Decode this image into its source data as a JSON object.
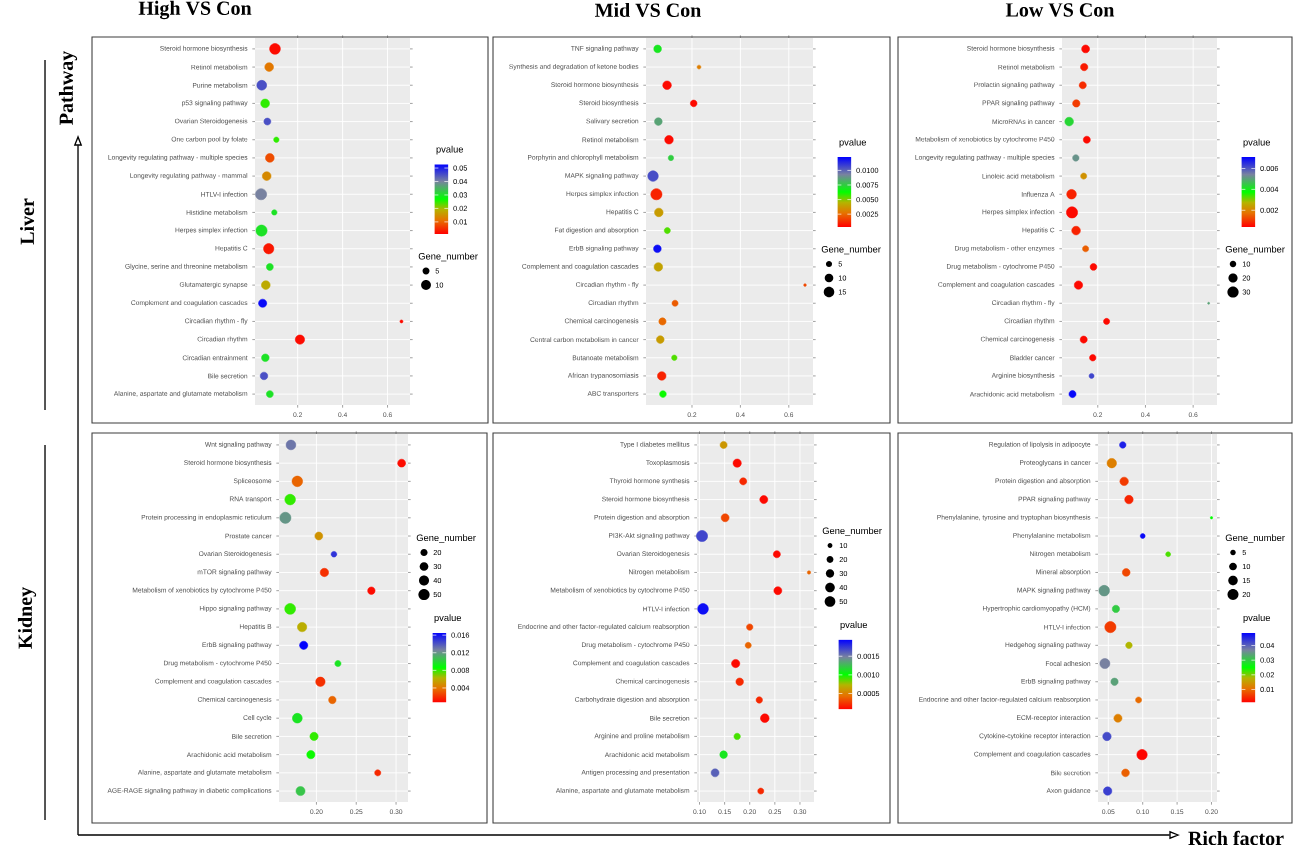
{
  "chart_data": [
    {
      "type": "bubble",
      "orientation": "horizontal",
      "title": "High VS Con",
      "ylabel": "Pathway",
      "annotations": [
        "Liver"
      ],
      "grid": true,
      "legend_title": "Gene_number",
      "clabel": "pvalue",
      "categories": [
        "Steroid hormone biosynthesis",
        "Retinol metabolism",
        "Purine metabolism",
        "p53 signaling pathway",
        "Ovarian Steroidogenesis",
        "One carbon pool by folate",
        "Longevity regulating pathway - multiple species",
        "Longevity regulating pathway - mammal",
        "HTLV-I infection",
        "Histidine metabolism",
        "Herpes simplex infection",
        "Hepatitis C",
        "Glycine, serine and threonine metabolism",
        "Glutamatergic synapse",
        "Complement and coagulation cascades",
        "Circadian rhythm - fly",
        "Circadian rhythm",
        "Circadian entrainment",
        "Bile secretion",
        "Alanine, aspartate and glutamate metabolism"
      ],
      "values": [
        0.099,
        0.073,
        0.04,
        0.055,
        0.065,
        0.105,
        0.076,
        0.062,
        0.037,
        0.096,
        0.039,
        0.071,
        0.076,
        0.058,
        0.044,
        0.662,
        0.21,
        0.056,
        0.05,
        0.076
      ],
      "sizes": [
        12,
        8,
        10,
        8,
        5,
        3,
        8,
        8,
        13,
        3,
        13,
        11,
        5,
        8,
        7,
        1,
        9,
        6,
        6,
        5
      ],
      "cvalues": [
        0.002,
        0.012,
        0.045,
        0.025,
        0.045,
        0.025,
        0.008,
        0.014,
        0.04,
        0.03,
        0.03,
        0.003,
        0.03,
        0.018,
        0.052,
        0.002,
        0.002,
        0.03,
        0.045,
        0.03
      ],
      "size_legend": [
        5,
        10
      ],
      "clim": [
        0.001,
        0.053
      ],
      "cticks": [
        0.01,
        0.02,
        0.03,
        0.04,
        0.05
      ],
      "xlim": [
        0.01,
        0.7
      ],
      "xticks": [
        0.2,
        0.4,
        0.6
      ]
    },
    {
      "type": "bubble",
      "orientation": "horizontal",
      "title": "Mid VS Con",
      "grid": true,
      "legend_title": "Gene_number",
      "clabel": "pvalue",
      "categories": [
        "TNF signaling pathway",
        "Synthesis and degradation of ketone bodies",
        "Steroid hormone biosynthesis",
        "Steroid biosynthesis",
        "Salivary secretion",
        "Retinol metabolism",
        "Porphyrin and chlorophyll metabolism",
        "MAPK signaling pathway",
        "Herpes simplex infection",
        "Hepatitis C",
        "Fat digestion and absorption",
        "ErbB signaling pathway",
        "Complement and coagulation cascades",
        "Circadian rhythm - fly",
        "Circadian rhythm",
        "Chemical carcinogenesis",
        "Central carbon metabolism in cancer",
        "Butanoate metabolism",
        "African trypanosomiasis",
        "ABC transporters"
      ],
      "values": [
        0.058,
        0.229,
        0.097,
        0.207,
        0.061,
        0.105,
        0.113,
        0.039,
        0.053,
        0.063,
        0.098,
        0.057,
        0.061,
        0.667,
        0.13,
        0.078,
        0.069,
        0.127,
        0.075,
        0.08
      ],
      "sizes": [
        8,
        2,
        10,
        6,
        8,
        10,
        4,
        15,
        17,
        10,
        5,
        8,
        10,
        1,
        5,
        7,
        8,
        4,
        10,
        6
      ],
      "cvalues": [
        0.0069,
        0.003,
        0.0005,
        0.0005,
        0.0085,
        0.0005,
        0.0075,
        0.0105,
        0.001,
        0.0038,
        0.0055,
        0.012,
        0.004,
        0.0018,
        0.0022,
        0.0025,
        0.0038,
        0.0055,
        0.001,
        0.0062
      ],
      "size_legend": [
        5,
        10,
        15
      ],
      "clim": [
        0.0003,
        0.0123
      ],
      "cticks": [
        0.0025,
        {
          "value": 0.005,
          "label": "0.0050"
        },
        {
          "value": 0.0075,
          "label": "0.0075"
        },
        {
          "value": 0.01,
          "label": "0.0100"
        }
      ],
      "xlim": [
        0.01,
        0.7
      ],
      "xticks": [
        0.2,
        0.4,
        0.6
      ]
    },
    {
      "type": "bubble",
      "orientation": "horizontal",
      "title": "Low VS Con",
      "grid": true,
      "legend_title": "Gene_number",
      "clabel": "pvalue",
      "categories": [
        "Steroid hormone biosynthesis",
        "Retinol metabolism",
        "Prolactin signaling pathway",
        "PPAR signaling pathway",
        "MicroRNAs in cancer",
        "Metabolism of xenobiotics by cytochrome P450",
        "Longevity regulating pathway - multiple species",
        "Linoleic acid metabolism",
        "Influenza A",
        "Herpes simplex infection",
        "Hepatitis C",
        "Drug metabolism - other enzymes",
        "Drug metabolism - cytochrome P450",
        "Complement and coagulation cascades",
        "Circadian rhythm - fly",
        "Circadian rhythm",
        "Chemical carcinogenesis",
        "Bladder cancer",
        "Arginine biosynthesis",
        "Arachidonic acid metabolism"
      ],
      "values": [
        0.149,
        0.143,
        0.137,
        0.11,
        0.08,
        0.154,
        0.108,
        0.141,
        0.09,
        0.092,
        0.109,
        0.149,
        0.182,
        0.119,
        0.665,
        0.237,
        0.141,
        0.179,
        0.174,
        0.094
      ],
      "sizes": [
        15,
        13,
        12,
        13,
        18,
        12,
        10,
        9,
        22,
        30,
        18,
        9,
        11,
        17,
        1,
        9,
        12,
        10,
        6,
        12
      ],
      "cvalues": [
        0.0005,
        0.0007,
        0.0009,
        0.0011,
        0.0043,
        0.0005,
        0.0052,
        0.0022,
        0.0008,
        0.0005,
        0.0008,
        0.0015,
        0.0005,
        0.0005,
        0.005,
        0.0005,
        0.0005,
        0.0005,
        0.0062,
        0.007
      ],
      "size_legend": [
        10,
        20,
        30
      ],
      "clim": [
        0.0004,
        0.0071
      ],
      "cticks": [
        0.002,
        0.004,
        0.006
      ],
      "xlim": [
        0.05,
        0.7
      ],
      "xticks": [
        0.2,
        0.4,
        0.6
      ]
    },
    {
      "type": "bubble",
      "orientation": "horizontal",
      "annotations": [
        "Kidney"
      ],
      "grid": true,
      "legend_title": "Gene_number",
      "clabel": "pvalue",
      "categories": [
        "Wnt signaling pathway",
        "Steroid hormone biosynthesis",
        "Spliceosome",
        "RNA transport",
        "Protein processing in endoplasmic reticulum",
        "Prostate cancer",
        "Ovarian Steroidogenesis",
        "mTOR signaling pathway",
        "Metabolism of xenobiotics by cytochrome P450",
        "Hippo signaling pathway",
        "Hepatitis B",
        "ErbB signaling pathway",
        "Drug metabolism - cytochrome P450",
        "Complement and coagulation cascades",
        "Chemical carcinogenesis",
        "Cell cycle",
        "Bile secretion",
        "Arachidonic acid metabolism",
        "Alanine, aspartate and glutamate metabolism",
        "AGE-RAGE signaling pathway in diabetic complications"
      ],
      "values": [
        0.168,
        0.307,
        0.176,
        0.167,
        0.161,
        0.203,
        0.222,
        0.21,
        0.269,
        0.167,
        0.182,
        0.184,
        0.227,
        0.205,
        0.22,
        0.176,
        0.197,
        0.193,
        0.277,
        0.18
      ],
      "sizes": [
        38,
        25,
        45,
        45,
        50,
        25,
        13,
        28,
        22,
        47,
        35,
        27,
        15,
        35,
        22,
        38,
        27,
        27,
        15,
        33
      ],
      "cvalues": [
        0.013,
        0.001,
        0.0035,
        0.008,
        0.012,
        0.005,
        0.015,
        0.002,
        0.001,
        0.008,
        0.006,
        0.0165,
        0.0095,
        0.002,
        0.0035,
        0.0095,
        0.008,
        0.0085,
        0.0018,
        0.0105
      ],
      "size_legend": [
        20,
        30,
        40,
        50
      ],
      "clim": [
        0.0007,
        0.0166
      ],
      "cticks": [
        0.004,
        0.008,
        0.012,
        0.016
      ],
      "xlim": [
        0.153,
        0.315
      ],
      "xticks": [
        {
          "value": 0.2,
          "label": "0.20"
        },
        {
          "value": 0.25,
          "label": "0.25"
        },
        {
          "value": 0.3,
          "label": "0.30"
        }
      ]
    },
    {
      "type": "bubble",
      "orientation": "horizontal",
      "grid": true,
      "legend_title": "Gene_number",
      "clabel": "pvalue",
      "categories": [
        "Type I diabetes mellitus",
        "Toxoplasmosis",
        "Thyroid hormone synthesis",
        "Steroid hormone biosynthesis",
        "Protein digestion and absorption",
        "PI3K-Akt signaling pathway",
        "Ovarian Steroidogenesis",
        "Nitrogen metabolism",
        "Metabolism of xenobiotics by cytochrome P450",
        "HTLV-I infection",
        "Endocrine and other factor-regulated calcium reabsorption",
        "Drug metabolism - cytochrome P450",
        "Complement and coagulation cascades",
        "Chemical carcinogenesis",
        "Carbohydrate digestion and absorption",
        "Bile secretion",
        "Arginine and proline metabolism",
        "Arachidonic acid metabolism",
        "Antigen processing and presentation",
        "Alanine, aspartate and glutamate metabolism"
      ],
      "values": [
        0.148,
        0.175,
        0.187,
        0.228,
        0.151,
        0.105,
        0.254,
        0.318,
        0.256,
        0.107,
        0.2,
        0.197,
        0.172,
        0.18,
        0.219,
        0.23,
        0.175,
        0.148,
        0.131,
        0.222
      ],
      "sizes": [
        22,
        30,
        22,
        28,
        28,
        55,
        22,
        5,
        28,
        50,
        18,
        16,
        30,
        25,
        18,
        33,
        18,
        25,
        28,
        16
      ],
      "cvalues": [
        0.0006,
        0.0001,
        0.0002,
        0.0001,
        0.0003,
        0.0017,
        0.0001,
        0.0004,
        0.0001,
        0.0019,
        0.0003,
        0.0004,
        0.0001,
        0.0002,
        0.0002,
        0.0001,
        0.0009,
        0.0011,
        0.0016,
        0.0002
      ],
      "size_legend": [
        10,
        20,
        30,
        40,
        50
      ],
      "clim": [
        7e-05,
        0.00195
      ],
      "cticks": [
        0.0005,
        {
          "value": 0.001,
          "label": "0.0010"
        },
        0.0015
      ],
      "xlim": [
        0.095,
        0.328
      ],
      "xticks": [
        {
          "value": 0.1,
          "label": "0.10"
        },
        {
          "value": 0.15,
          "label": "0.15"
        },
        {
          "value": 0.2,
          "label": "0.20"
        },
        {
          "value": 0.25,
          "label": "0.25"
        },
        {
          "value": 0.3,
          "label": "0.30"
        }
      ]
    },
    {
      "type": "bubble",
      "orientation": "horizontal",
      "xlabel": "Rich factor",
      "grid": true,
      "legend_title": "Gene_number",
      "clabel": "pvalue",
      "categories": [
        "Regulation of lipolysis in adipocyte",
        "Proteoglycans in cancer",
        "Protein digestion and absorption",
        "PPAR signaling pathway",
        "Phenylalanine, tyrosine and tryptophan biosynthesis",
        "Phenylalanine metabolism",
        "Nitrogen metabolism",
        "Mineral absorption",
        "MAPK signaling pathway",
        "Hypertrophic cardiomyopathy (HCM)",
        "HTLV-I infection",
        "Hedgehog signaling pathway",
        "Focal adhesion",
        "ErbB signaling pathway",
        "Endocrine and other factor-regulated calcium reabsorption",
        "ECM-receptor interaction",
        "Cytokine-cytokine receptor interaction",
        "Complement and coagulation cascades",
        "Bile secretion",
        "Axon guidance"
      ],
      "values": [
        0.071,
        0.055,
        0.073,
        0.08,
        0.2,
        0.1,
        0.137,
        0.076,
        0.044,
        0.061,
        0.053,
        0.08,
        0.045,
        0.059,
        0.094,
        0.064,
        0.048,
        0.099,
        0.075,
        0.049
      ],
      "sizes": [
        7,
        15,
        12,
        12,
        1,
        4,
        4,
        10,
        19,
        9,
        21,
        7,
        17,
        9,
        6,
        11,
        12,
        18,
        10,
        12
      ],
      "cvalues": [
        0.046,
        0.012,
        0.006,
        0.004,
        0.025,
        0.048,
        0.022,
        0.007,
        0.035,
        0.03,
        0.006,
        0.018,
        0.037,
        0.034,
        0.01,
        0.012,
        0.042,
        0.0015,
        0.009,
        0.043
      ],
      "size_legend": [
        5,
        10,
        15,
        20
      ],
      "clim": [
        0.0011,
        0.0489
      ],
      "cticks": [
        0.01,
        0.02,
        0.03,
        0.04
      ],
      "xlim": [
        0.035,
        0.208
      ],
      "xticks": [
        0.05,
        {
          "value": 0.1,
          "label": "0.10"
        },
        {
          "value": 0.15,
          "label": "0.15"
        },
        {
          "value": 0.2,
          "label": "0.20"
        }
      ]
    }
  ]
}
